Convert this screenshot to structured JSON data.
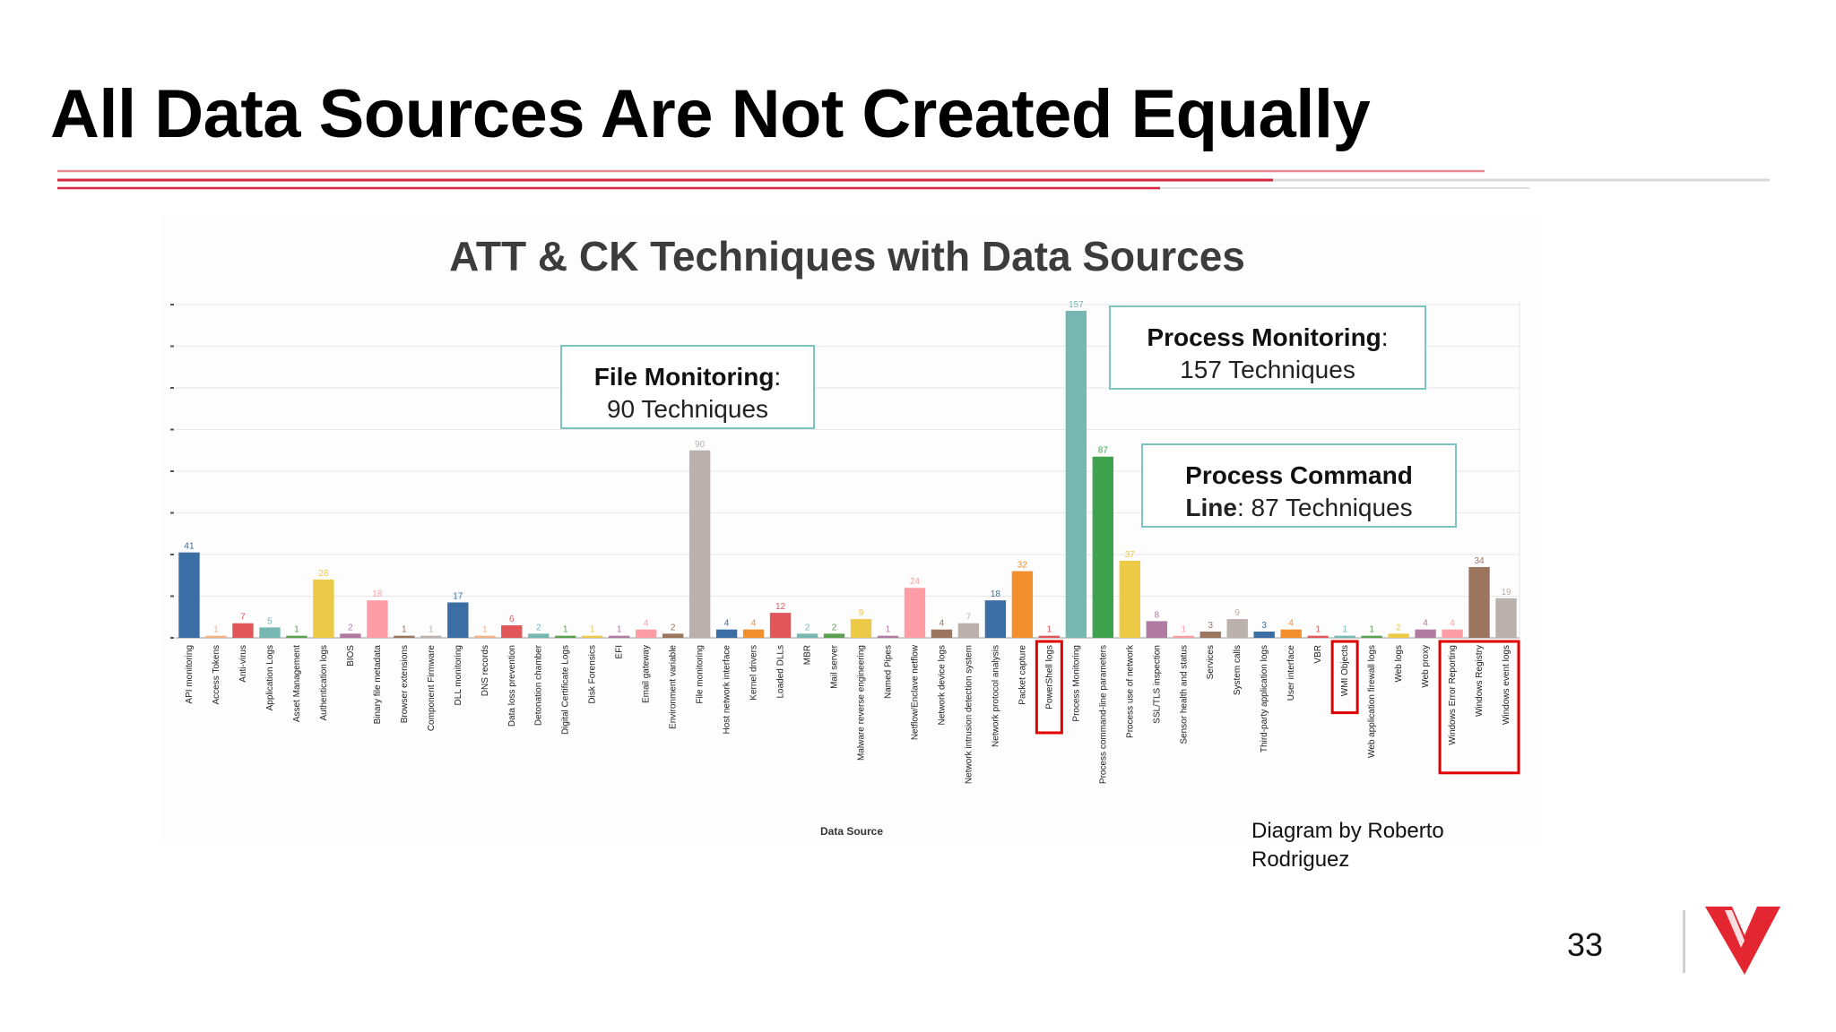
{
  "slide": {
    "title": "All Data Sources Are Not Created Equally",
    "credit": "Diagram by Roberto Rodriguez",
    "page_number": "33",
    "accent_color": "#d7263d",
    "logo_icon": "red-v-logo-icon"
  },
  "chart_data": {
    "type": "bar",
    "title": "ATT & CK Techniques with Data Sources",
    "xlabel": "Data Source",
    "ylabel": "",
    "ylim": [
      0,
      160
    ],
    "grid": true,
    "categories": [
      "API monitoring",
      "Access Tokens",
      "Anti-virus",
      "Application Logs",
      "Asset Management",
      "Authentication logs",
      "BIOS",
      "Binary file metadata",
      "Browser extensions",
      "Component Firmware",
      "DLL monitoring",
      "DNS records",
      "Data loss prevention",
      "Detonation chamber",
      "Digital Certificate Logs",
      "Disk Forensics",
      "EFI",
      "Email gateway",
      "Environment variable",
      "File monitoring",
      "Host network interface",
      "Kernel drivers",
      "Loaded DLLs",
      "MBR",
      "Mail server",
      "Malware reverse engineering",
      "Named Pipes",
      "Netflow/Enclave netflow",
      "Network device logs",
      "Network intrusion detection system",
      "Network protocol analysis",
      "Packet capture",
      "PowerShell logs",
      "Process Monitoring",
      "Process command-line parameters",
      "Process use of network",
      "SSL/TLS inspection",
      "Sensor health and status",
      "Services",
      "System calls",
      "Third-party application logs",
      "User interface",
      "VBR",
      "WMI Objects",
      "Web application firewall logs",
      "Web logs",
      "Web proxy",
      "Windows Error Reporting",
      "Windows Registry",
      "Windows event logs"
    ],
    "values": [
      41,
      1,
      7,
      5,
      1,
      28,
      2,
      18,
      1,
      1,
      17,
      1,
      6,
      2,
      1,
      1,
      1,
      4,
      2,
      90,
      4,
      4,
      12,
      2,
      2,
      9,
      1,
      24,
      4,
      7,
      18,
      32,
      1,
      157,
      87,
      37,
      8,
      1,
      3,
      9,
      3,
      4,
      1,
      1,
      1,
      2,
      4,
      4,
      34,
      19
    ],
    "colors": [
      "#3a6ea5",
      "#f4b183",
      "#e15759",
      "#76b7b2",
      "#59a14f",
      "#edc948",
      "#b07aa1",
      "#ff9da7",
      "#9c755f",
      "#bab0ac",
      "#3a6ea5",
      "#f4b183",
      "#e15759",
      "#76b7b2",
      "#59a14f",
      "#edc948",
      "#b07aa1",
      "#ff9da7",
      "#9c755f",
      "#bab0ac",
      "#3a6ea5",
      "#f28e2b",
      "#e15759",
      "#76b7b2",
      "#59a14f",
      "#edc948",
      "#b07aa1",
      "#ff9da7",
      "#9c755f",
      "#bab0ac",
      "#3a6ea5",
      "#f28e2b",
      "#e15759",
      "#76b7b2",
      "#3fa34d",
      "#edc948",
      "#b07aa1",
      "#ff9da7",
      "#9c755f",
      "#bab0ac",
      "#3a6ea5",
      "#f28e2b",
      "#e15759",
      "#76b7b2",
      "#59a14f",
      "#edc948",
      "#b07aa1",
      "#ff9da7",
      "#9c755f",
      "#bab0ac"
    ],
    "annotations": [
      {
        "title": "File Monitoring",
        "text": "90 Techniques"
      },
      {
        "title": "Process Monitoring",
        "text": "157 Techniques"
      },
      {
        "title": "Process Command",
        "title2": "Line",
        "text": "87 Techniques"
      }
    ],
    "highlighted": [
      "PowerShell logs",
      "WMI Objects",
      "Windows Error Reporting",
      "Windows Registry",
      "Windows event logs"
    ],
    "highlight_color": "#e00000",
    "annotation_border_color": "#7cc4c0"
  }
}
